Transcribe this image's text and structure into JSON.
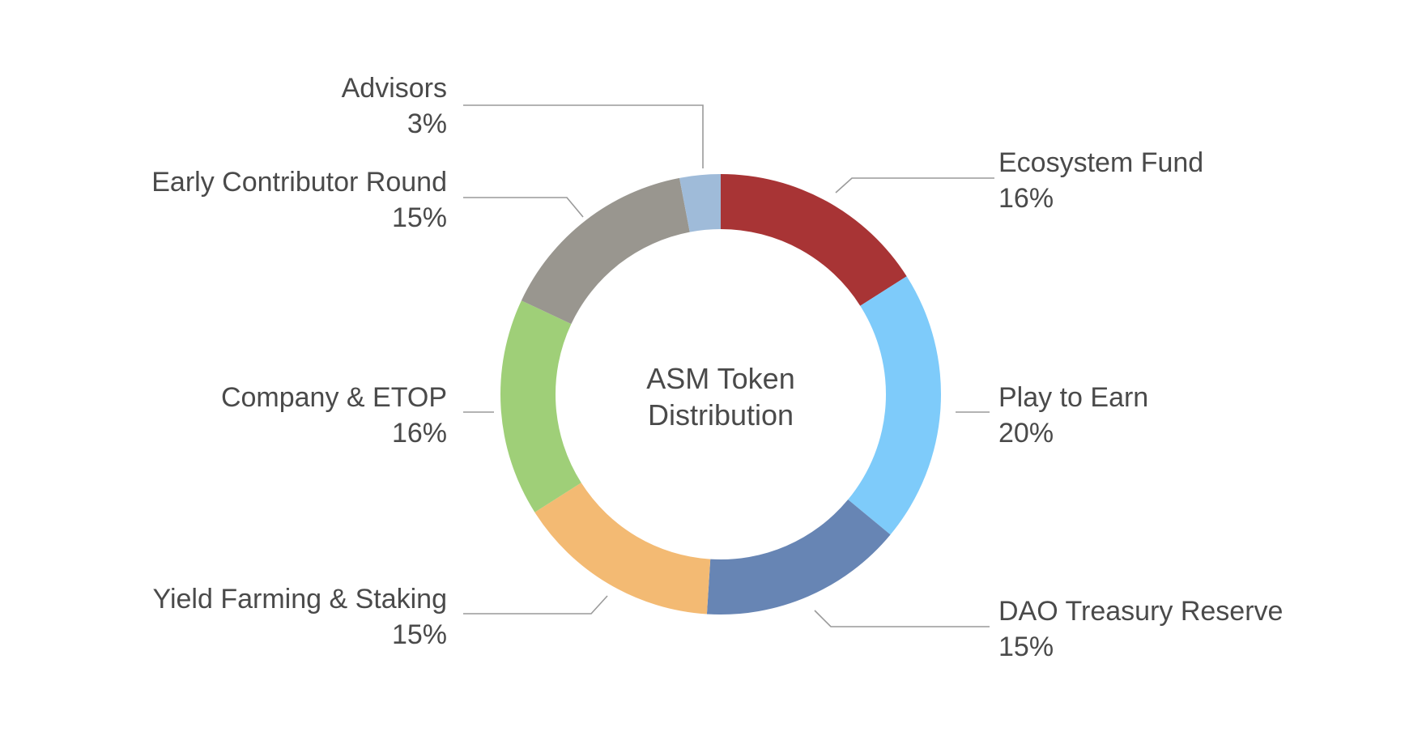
{
  "chart_data": {
    "type": "pie",
    "title": "ASM Token Distribution",
    "title_lines": [
      "ASM Token",
      "Distribution"
    ],
    "donut": true,
    "slices": [
      {
        "label": "Ecosystem Fund",
        "value": 16,
        "display": "16%",
        "color": "#a83435"
      },
      {
        "label": "Play to Earn",
        "value": 20,
        "display": "20%",
        "color": "#7ecbfa"
      },
      {
        "label": "DAO Treasury Reserve",
        "value": 15,
        "display": "15%",
        "color": "#6785b4"
      },
      {
        "label": "Yield Farming & Staking",
        "value": 15,
        "display": "15%",
        "color": "#f3ba73"
      },
      {
        "label": "Company & ETOP",
        "value": 16,
        "display": "16%",
        "color": "#9fcf78"
      },
      {
        "label": "Early Contributor Round",
        "value": 15,
        "display": "15%",
        "color": "#99968f"
      },
      {
        "label": "Advisors",
        "value": 3,
        "display": "3%",
        "color": "#9fbbd9"
      }
    ],
    "legend": "none"
  }
}
